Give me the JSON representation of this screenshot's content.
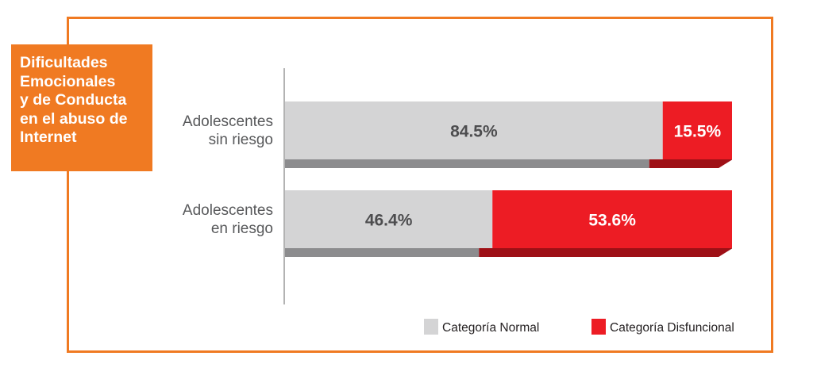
{
  "title_lines": [
    "Dificultades",
    "Emocionales",
    "y de Conducta",
    "en el abuso de",
    "Internet"
  ],
  "colors": {
    "frame": "#f07a22",
    "title_bg": "#f07a22",
    "normal": "#d4d4d5",
    "normal_shadow": "#8c8c8e",
    "dysfunctional": "#ed1c24",
    "dysfunctional_shadow": "#9e1016",
    "axis": "#b3b3b3"
  },
  "chart_data": {
    "type": "bar",
    "orientation": "horizontal",
    "stacked": true,
    "categories": [
      [
        "Adolescentes",
        "sin riesgo"
      ],
      [
        "Adolescentes",
        "en riesgo"
      ]
    ],
    "series": [
      {
        "name": "Categoría Normal",
        "values": [
          84.5,
          46.4
        ],
        "labels": [
          "84.5%",
          "46.4%"
        ]
      },
      {
        "name": "Categoría Disfuncional",
        "values": [
          15.5,
          53.6
        ],
        "labels": [
          "15.5%",
          "53.6%"
        ]
      }
    ],
    "xlim": [
      0,
      100
    ],
    "grid": false,
    "legend_position": "bottom-right"
  }
}
